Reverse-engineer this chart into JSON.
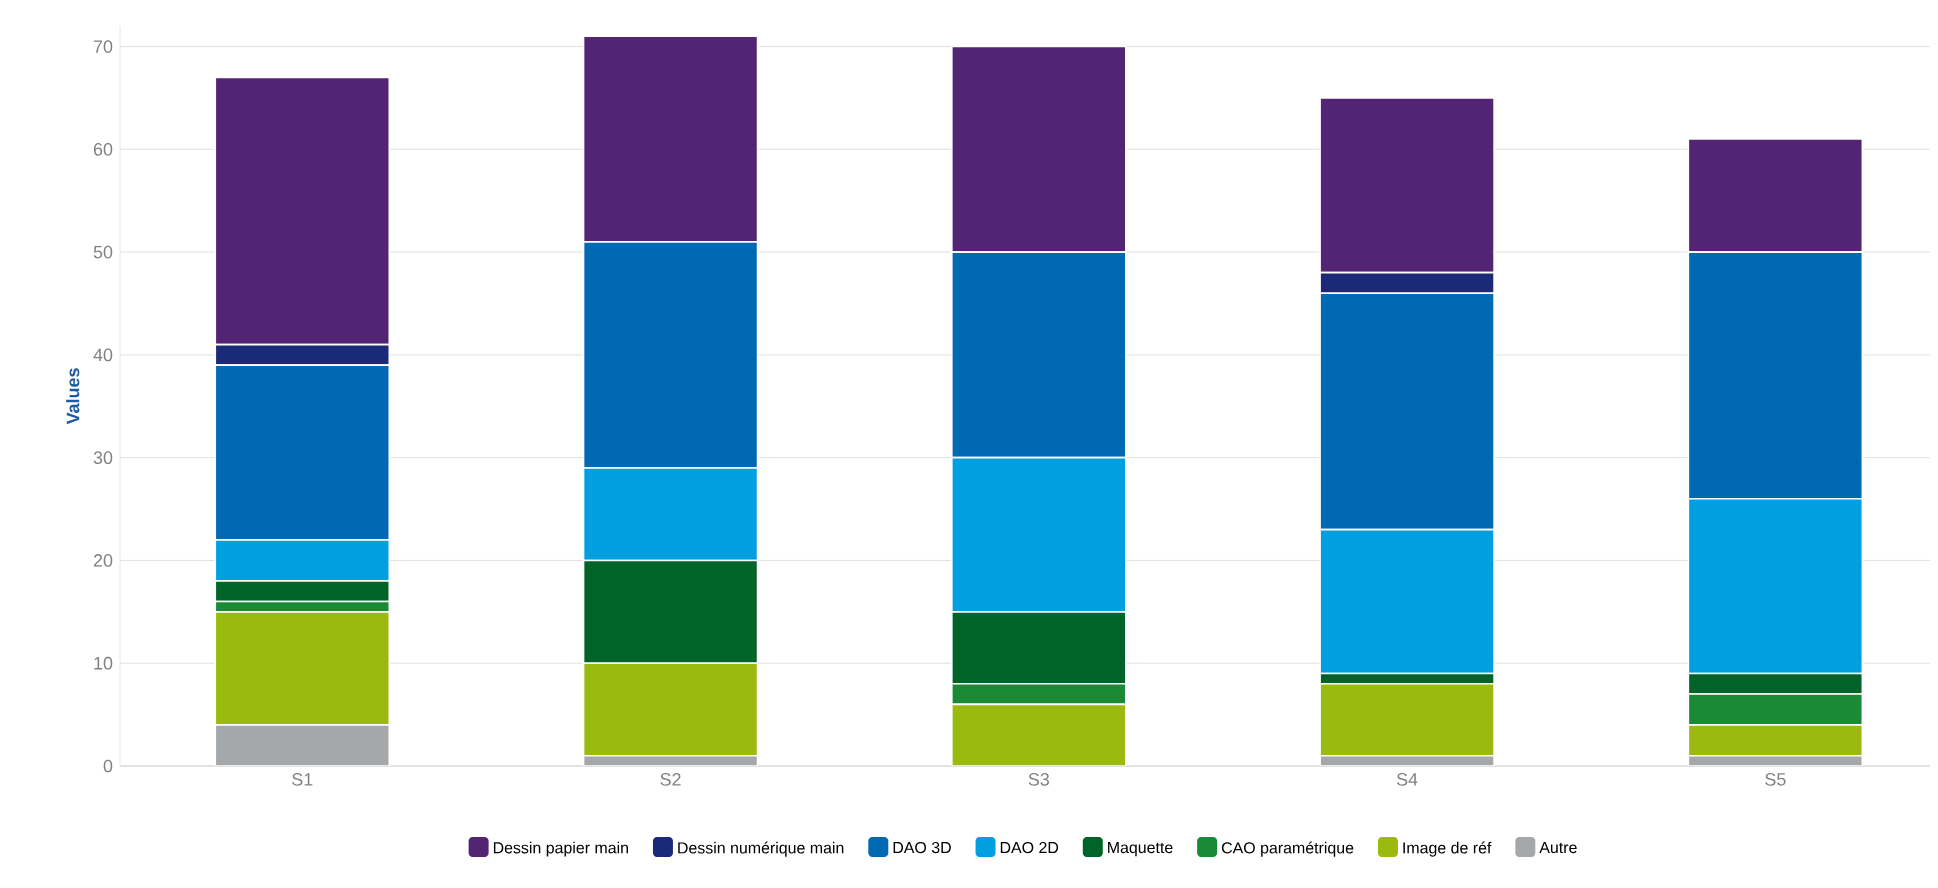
{
  "chart_data": {
    "type": "bar",
    "stacked": true,
    "ylabel": "Values",
    "categories": [
      "S1",
      "S2",
      "S3",
      "S4",
      "S5"
    ],
    "ylim": [
      0,
      72
    ],
    "yticks": [
      0,
      10,
      20,
      30,
      40,
      50,
      60,
      70
    ],
    "grid": "y",
    "legend": "bottom",
    "series": [
      {
        "name": "Autre",
        "color": "#a5a8aa",
        "values": [
          4,
          1,
          0,
          1,
          1
        ]
      },
      {
        "name": "Image de réf",
        "color": "#9aba10",
        "values": [
          11,
          9,
          6,
          7,
          3
        ]
      },
      {
        "name": "CAO paramétrique",
        "color": "#1a8a36",
        "values": [
          1,
          0,
          2,
          0,
          3
        ]
      },
      {
        "name": "Maquette",
        "color": "#006428",
        "values": [
          2,
          10,
          7,
          1,
          2
        ]
      },
      {
        "name": "DAO 2D",
        "color": "#009fe0",
        "values": [
          4,
          9,
          15,
          14,
          17
        ]
      },
      {
        "name": "DAO 3D",
        "color": "#0069b4",
        "values": [
          17,
          22,
          20,
          23,
          24
        ]
      },
      {
        "name": "Dessin numérique main",
        "color": "#1b2a78",
        "values": [
          2,
          0,
          0,
          2,
          0
        ]
      },
      {
        "name": "Dessin papier main",
        "color": "#522473",
        "values": [
          26,
          20,
          20,
          17,
          11
        ]
      }
    ]
  }
}
